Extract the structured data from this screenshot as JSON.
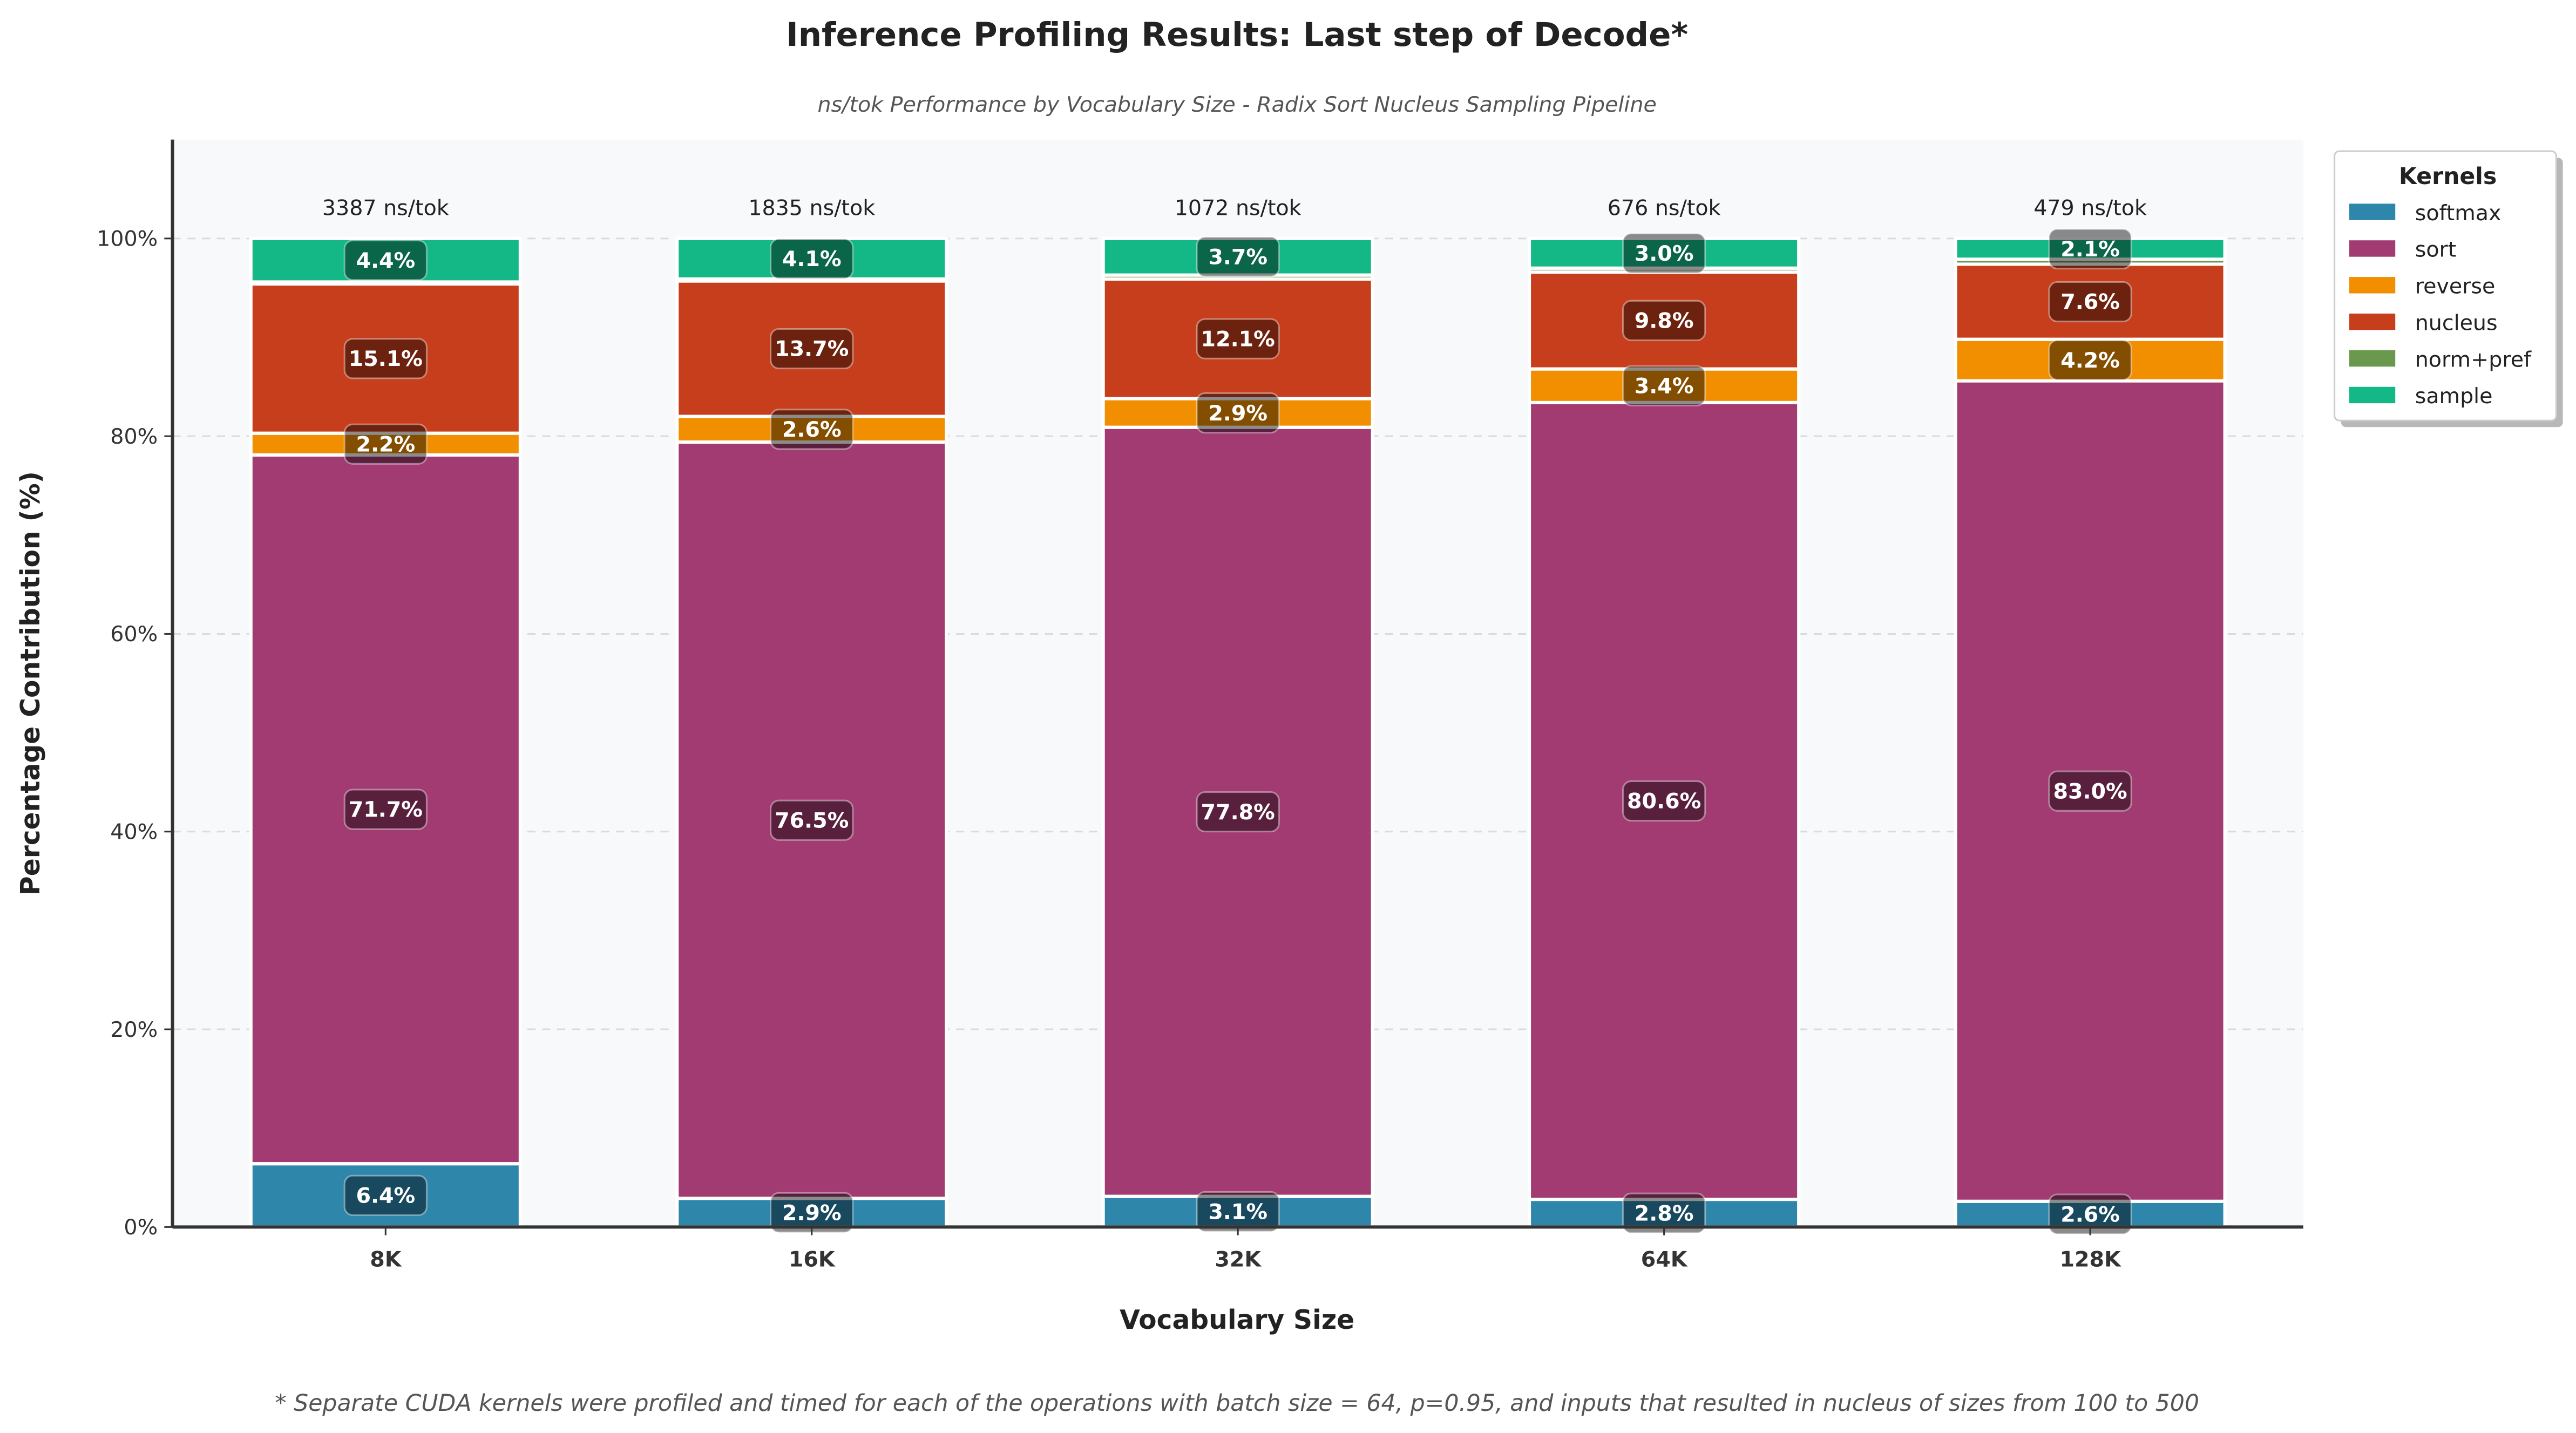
{
  "chart_data": {
    "type": "bar",
    "stacked": true,
    "title": "Inference Profiling Results: Last step of Decode*",
    "subtitle": "ns/tok Performance by Vocabulary Size - Radix Sort Nucleus Sampling Pipeline",
    "xlabel": "Vocabulary Size",
    "ylabel": "Percentage Contribution (%)",
    "ylim": [
      0,
      110
    ],
    "yticks": [
      0,
      20,
      40,
      60,
      80,
      100
    ],
    "ytick_labels": [
      "0%",
      "20%",
      "40%",
      "60%",
      "80%",
      "100%"
    ],
    "grid": "y-dashed",
    "categories": [
      "8K",
      "16K",
      "32K",
      "64K",
      "128K"
    ],
    "totals": [
      "3387 ns/tok",
      "1835 ns/tok",
      "1072 ns/tok",
      "676 ns/tok",
      "479 ns/tok"
    ],
    "legend": {
      "title": "Kernels",
      "placement": "outside-top-right"
    },
    "series": [
      {
        "name": "softmax",
        "color": "#2E86AB",
        "values": [
          6.4,
          2.9,
          3.1,
          2.8,
          2.6
        ]
      },
      {
        "name": "sort",
        "color": "#A23B72",
        "values": [
          71.7,
          76.5,
          77.8,
          80.6,
          83.0
        ]
      },
      {
        "name": "reverse",
        "color": "#F18F01",
        "values": [
          2.2,
          2.6,
          2.9,
          3.4,
          4.2
        ]
      },
      {
        "name": "nucleus",
        "color": "#C73E1D",
        "values": [
          15.1,
          13.7,
          12.1,
          9.8,
          7.6
        ]
      },
      {
        "name": "norm+pref",
        "color": "#6A994E",
        "values": [
          0.2,
          0.2,
          0.4,
          0.4,
          0.5
        ]
      },
      {
        "name": "sample",
        "color": "#13B886",
        "values": [
          4.4,
          4.1,
          3.7,
          3.0,
          2.1
        ]
      }
    ],
    "label_min": 1.0,
    "footnote": "* Separate CUDA kernels were profiled and timed for each of the operations with batch size = 64, p=0.95, and inputs that resulted in nucleus of sizes from 100 to 500"
  }
}
